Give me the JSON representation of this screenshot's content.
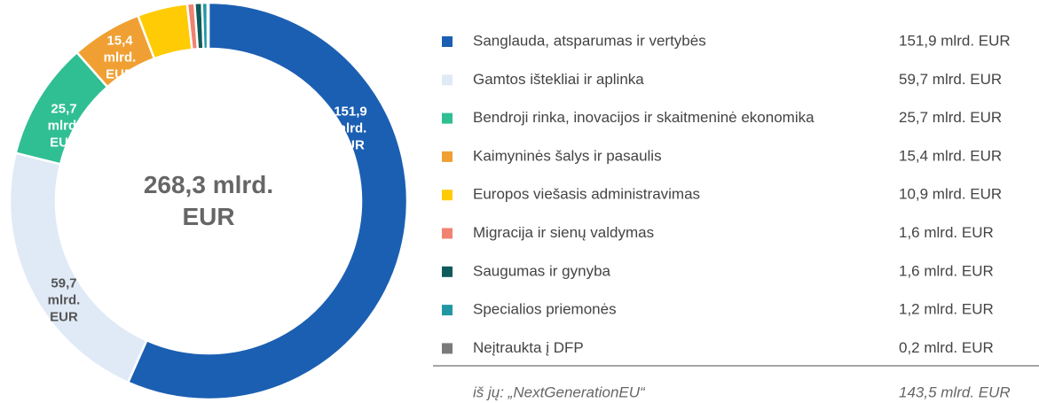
{
  "chart_data": {
    "type": "donut",
    "center_label": "268,3 mlrd. EUR",
    "categories": [
      "Sanglauda, atsparumas ir vertybės",
      "Gamtos ištekliai ir aplinka",
      "Bendroji rinka, inovacijos ir skaitmeninė ekonomika",
      "Kaimyninės šalys ir pasaulis",
      "Europos viešasis administravimas",
      "Migracija ir sienų valdymas",
      "Saugumas ir gynyba",
      "Specialios priemonės",
      "Neįtraukta į DFP"
    ],
    "values": [
      151.9,
      59.7,
      25.7,
      15.4,
      10.9,
      1.6,
      1.6,
      1.2,
      0.2
    ],
    "value_labels": [
      "151,9 mlrd. EUR",
      "59,7 mlrd. EUR",
      "25,7 mlrd. EUR",
      "15,4 mlrd. EUR",
      "10,9 mlrd. EUR",
      "1,6 mlrd. EUR",
      "1,6 mlrd. EUR",
      "1,2 mlrd. EUR",
      "0,2 mlrd. EUR"
    ],
    "colors": [
      "#1b5fb2",
      "#dfeaf6",
      "#2fbf92",
      "#f0a033",
      "#ffcb05",
      "#f08272",
      "#0f5a5a",
      "#2098a3",
      "#7a7a7a"
    ],
    "footnote": {
      "label": "iš jų: „NextGenerationEU“",
      "value_label": "143,5 mlrd. EUR"
    }
  }
}
